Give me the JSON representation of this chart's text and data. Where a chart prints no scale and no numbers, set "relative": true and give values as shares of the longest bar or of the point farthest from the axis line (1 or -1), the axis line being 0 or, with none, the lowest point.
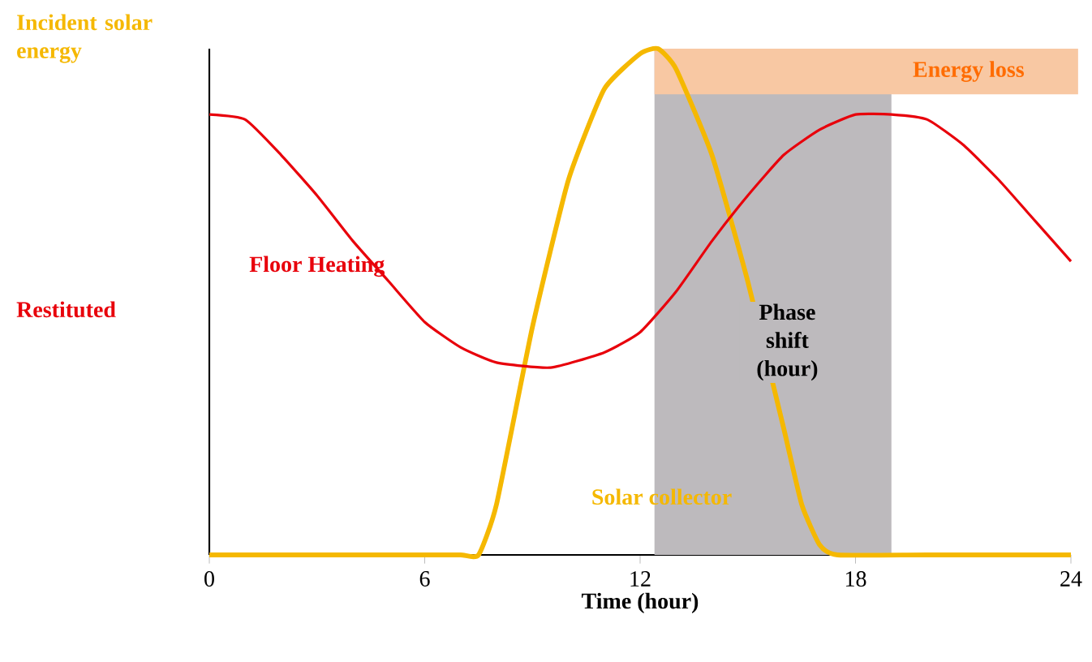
{
  "chart_data": {
    "type": "line",
    "relative": true,
    "xlabel": "Time (hour)",
    "ylabel": "Incident solar energy",
    "xlim": [
      0,
      24
    ],
    "xticks": [
      0,
      6,
      12,
      18,
      24
    ],
    "annotations": [
      "Restituted"
    ],
    "series": [
      {
        "name": "Solar collector",
        "color": "#f5b800",
        "x": [
          0,
          2,
          4,
          6,
          7,
          7.5,
          8,
          9,
          10,
          11,
          12,
          12.5,
          13,
          14,
          15,
          16,
          16.5,
          17,
          17.5,
          20,
          24
        ],
        "values": [
          0,
          0,
          0,
          0,
          0,
          0,
          0.1,
          0.45,
          0.74,
          0.92,
          0.99,
          1,
          0.96,
          0.79,
          0.54,
          0.25,
          0.1,
          0.02,
          0,
          0,
          0
        ]
      },
      {
        "name": "Floor Heating",
        "color": "#e8000b",
        "x": [
          0,
          1,
          2,
          3,
          4,
          5,
          6,
          7,
          8,
          9.5,
          11,
          12,
          13,
          14,
          15,
          16,
          17,
          18,
          19,
          20,
          21,
          22,
          23,
          24
        ],
        "values": [
          0.87,
          0.86,
          0.79,
          0.71,
          0.62,
          0.54,
          0.46,
          0.41,
          0.38,
          0.37,
          0.4,
          0.44,
          0.52,
          0.62,
          0.71,
          0.79,
          0.84,
          0.87,
          0.87,
          0.86,
          0.81,
          0.74,
          0.66,
          0.58
        ]
      }
    ],
    "bands": [
      {
        "axis": "x",
        "from": 12.4,
        "to": 19,
        "label": "Phase shift (hour)",
        "color": "#bdbabd"
      },
      {
        "axis": "y",
        "from": 0.91,
        "to": 1,
        "label": "Energy loss",
        "color": "#f8c8a3"
      }
    ]
  }
}
